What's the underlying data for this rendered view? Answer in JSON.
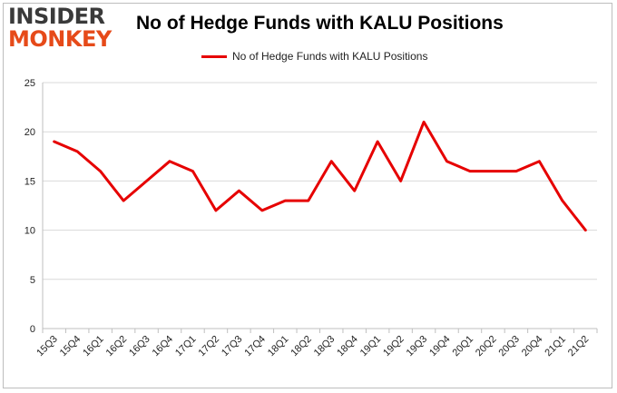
{
  "brand": {
    "line1": "INSIDER",
    "line2": "MONKEY"
  },
  "chart_data": {
    "type": "line",
    "title": "No of Hedge Funds with KALU Positions",
    "xlabel": "",
    "ylabel": "",
    "categories": [
      "15Q3",
      "15Q4",
      "16Q1",
      "16Q2",
      "16Q3",
      "16Q4",
      "17Q1",
      "17Q2",
      "17Q3",
      "17Q4",
      "18Q1",
      "18Q2",
      "18Q3",
      "18Q4",
      "19Q1",
      "19Q2",
      "19Q3",
      "19Q4",
      "20Q1",
      "20Q2",
      "20Q3",
      "20Q4",
      "21Q1",
      "21Q2"
    ],
    "series": [
      {
        "name": "No of Hedge Funds with KALU Positions",
        "values": [
          19,
          18,
          16,
          13,
          15,
          17,
          16,
          12,
          14,
          12,
          13,
          13,
          17,
          14,
          19,
          15,
          21,
          17,
          16,
          16,
          16,
          17,
          13,
          10
        ],
        "color": "#e60000"
      }
    ],
    "ylim": [
      0,
      25
    ],
    "yticks": [
      0,
      5,
      10,
      15,
      20,
      25
    ],
    "grid": true,
    "legend": "top-center"
  }
}
